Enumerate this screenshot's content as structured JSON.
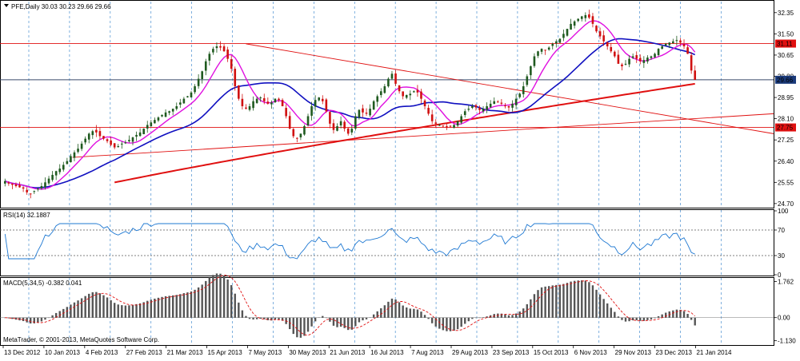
{
  "main_title": "PFE,Daily  30.03 30.23 29.66 29.66",
  "rsi_title": "RSI(14) 32.1887",
  "macd_title": "MACD(5,34,5) -0.382 0.041",
  "copyright": "MetaTrader, © 2001-2013, MetaQuotes Software Corp.",
  "colors": {
    "up_candle": "#1f5a1f",
    "down_candle": "#d01010",
    "ma_fast": "#e010e0",
    "ma_mid": "#1010c0",
    "ma_slow": "#e01010",
    "trendline": "#e01010",
    "rsi_line": "#1e78d2",
    "macd_signal": "#e01010",
    "grid": "#4a8fd0"
  },
  "chart_data": [
    {
      "type": "candlestick",
      "title": "PFE,Daily  30.03 30.23 29.66 29.66",
      "symbol": "PFE",
      "timeframe": "Daily",
      "ohlc_last": {
        "open": 30.03,
        "high": 30.23,
        "low": 29.66,
        "close": 29.66
      },
      "y_ticks": [
        "32.35",
        "31.50",
        "30.65",
        "29.80",
        "28.95",
        "28.10",
        "27.25",
        "26.40",
        "25.55",
        "24.70"
      ],
      "ylim": [
        24.6,
        32.6
      ],
      "price_labels": [
        {
          "text": "31.11",
          "value": 31.11,
          "color": "#e01010"
        },
        {
          "text": "29.66",
          "value": 29.66,
          "color": "#1a3a7a"
        },
        {
          "text": "27.75",
          "value": 27.75,
          "color": "#e01010"
        }
      ],
      "horizontal_lines": [
        31.11,
        29.66,
        27.75
      ],
      "x_labels": [
        "13 Dec 2012",
        "10 Jan 2013",
        "4 Feb 2013",
        "27 Feb 2013",
        "21 Mar 2013",
        "15 Apr 2013",
        "7 May 2013",
        "30 May 2013",
        "21 Jun 2013",
        "16 Jul 2013",
        "7 Aug 2013",
        "29 Aug 2013",
        "23 Sep 2013",
        "15 Oct 2013",
        "6 Nov 2013",
        "29 Nov 2013",
        "23 Dec 2013",
        "21 Jan 2014"
      ],
      "trendlines": [
        {
          "from": [
            0.35,
            31.1
          ],
          "to": [
            1.0,
            27.5
          ]
        },
        {
          "from": [
            0.1,
            26.55
          ],
          "to": [
            1.0,
            28.3
          ]
        }
      ],
      "closes": [
        25.6,
        25.5,
        25.45,
        25.4,
        25.35,
        25.3,
        25.15,
        25.1,
        25.2,
        25.3,
        25.4,
        25.55,
        25.7,
        25.85,
        26.0,
        26.1,
        26.25,
        26.4,
        26.6,
        26.75,
        26.9,
        27.1,
        27.3,
        27.5,
        27.6,
        27.55,
        27.4,
        27.3,
        27.2,
        27.05,
        26.95,
        27.0,
        27.1,
        27.15,
        27.25,
        27.35,
        27.45,
        27.55,
        27.7,
        27.85,
        27.95,
        28.05,
        28.15,
        28.25,
        28.35,
        28.4,
        28.5,
        28.6,
        28.75,
        28.9,
        29.0,
        29.15,
        29.4,
        29.7,
        30.0,
        30.4,
        30.7,
        30.9,
        31.0,
        30.95,
        30.8,
        30.5,
        30.1,
        29.4,
        28.9,
        28.6,
        28.5,
        28.6,
        28.8,
        28.9,
        28.95,
        28.8,
        28.7,
        28.75,
        28.9,
        28.85,
        28.6,
        28.2,
        27.7,
        27.4,
        27.3,
        27.5,
        27.8,
        28.2,
        28.6,
        28.85,
        28.95,
        28.8,
        28.4,
        27.9,
        27.65,
        27.8,
        28.0,
        27.7,
        27.5,
        27.7,
        28.2,
        28.45,
        28.35,
        28.3,
        28.5,
        28.8,
        29.0,
        29.2,
        29.4,
        29.7,
        29.9,
        29.5,
        29.2,
        29.0,
        29.05,
        29.1,
        29.2,
        29.15,
        28.9,
        28.6,
        28.3,
        28.0,
        27.9,
        27.85,
        27.8,
        27.75,
        27.8,
        27.85,
        28.0,
        28.2,
        28.4,
        28.5,
        28.6,
        28.55,
        28.45,
        28.5,
        28.6,
        28.7,
        28.8,
        28.75,
        28.7,
        28.6,
        28.55,
        28.7,
        28.9,
        29.1,
        29.4,
        29.8,
        30.2,
        30.6,
        30.8,
        30.9,
        30.85,
        30.95,
        31.1,
        31.2,
        31.3,
        31.5,
        31.7,
        31.9,
        32.0,
        32.1,
        32.2,
        32.25,
        32.15,
        31.9,
        31.6,
        31.4,
        31.2,
        31.0,
        30.8,
        30.6,
        30.3,
        30.2,
        30.3,
        30.5,
        30.6,
        30.5,
        30.4,
        30.45,
        30.55,
        30.6,
        30.7,
        30.9,
        31.0,
        31.1,
        31.15,
        31.2,
        31.25,
        31.15,
        31.0,
        30.7,
        30.03,
        29.66
      ]
    },
    {
      "type": "line",
      "title": "RSI(14) 32.1887",
      "y_ticks": [
        "100",
        "70",
        "30",
        "0"
      ],
      "ylim": [
        0,
        100
      ],
      "levels": [
        70,
        30
      ],
      "last": 32.1887
    },
    {
      "type": "bar",
      "title": "MACD(5,34,5) -0.382 0.041",
      "y_ticks": [
        "1.762",
        "0.00",
        "-1.130"
      ],
      "ylim": [
        -1.3,
        1.9
      ],
      "last_macd": -0.382,
      "last_signal": 0.041
    }
  ]
}
